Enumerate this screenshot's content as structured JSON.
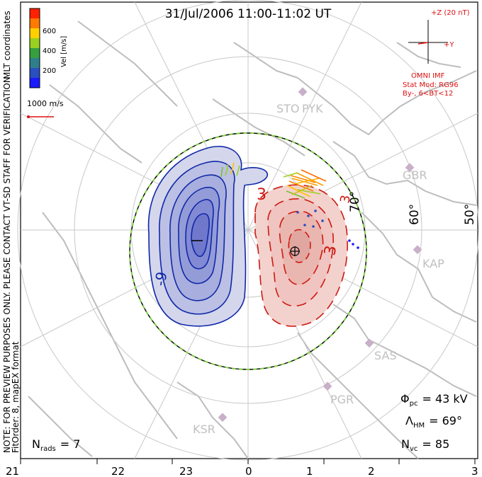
{
  "header": {
    "title": "31/Jul/2006 11:00-11:02 UT"
  },
  "colorbar": {
    "ticks": [
      "600",
      "400",
      "200"
    ],
    "unit_label": "Vel [m/s]",
    "colors": [
      "#ff2200",
      "#ff7a00",
      "#ffd000",
      "#9ad020",
      "#36a040",
      "#2e7f8c",
      "#2a4fc0",
      "#1a1aff"
    ]
  },
  "side_notes": {
    "coordinates": "MLT coordinates",
    "preview_note": "NOTE: FOR PREVIEW PURPOSES ONLY. PLEASE CONTACT VT-SD STAFF FOR VERIFICATION.",
    "fit_order": "FitOrder: 8, mapEX format"
  },
  "reference_vector": {
    "label": "1000 m/s"
  },
  "imf": {
    "z_label": "+Z (20 nT)",
    "y_label": "+Y",
    "source": "OMNI IMF",
    "model_line1": "Stat Mod: RG96",
    "model_line2": "By-, 6<BT<12"
  },
  "stations": [
    "STO",
    "PYK",
    "GBR",
    "KAP",
    "SAS",
    "PGR",
    "KSR"
  ],
  "latitude_labels": [
    "70°",
    "60°",
    "50°"
  ],
  "contour_labels": {
    "negative": "-9",
    "positive_1": "3",
    "positive_2": "3",
    "positive_3": "3"
  },
  "stats": {
    "phi_pc": "Φpc = 43 kV",
    "phi_pc_symbol": "Φ",
    "phi_pc_sub": "pc",
    "phi_pc_value": "= 43 kV",
    "lambda_hm_symbol": "Λ",
    "lambda_hm_sub": "HM",
    "lambda_hm_value": "= 69°",
    "n_vc_symbol": "N",
    "n_vc_sub": "vc",
    "n_vc_value": "= 85",
    "n_rads_symbol": "N",
    "n_rads_sub": "rads",
    "n_rads_value": "= 7"
  },
  "mlt_axis": [
    "21",
    "22",
    "23",
    "0",
    "1",
    "2",
    "3"
  ],
  "colors": {
    "negative_contour": "#1028a8",
    "positive_contour": "#cc1a10",
    "negative_fill": "#c8cce8",
    "positive_fill": "#f4c8c4",
    "grid": "#c8c8c8",
    "imf_red": "#dd1111"
  }
}
